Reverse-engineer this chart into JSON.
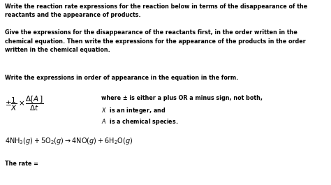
{
  "bg_color": "#ffffff",
  "text_color": "#000000",
  "para1": "Write the reaction rate expressions for the reaction below in terms of the disappearance of the\nreactants and the appearance of products.",
  "para2": "Give the expressions for the disappearance of the reactants first, in the order written in the\nchemical equation. Then write the expressions for the appearance of the products in the order\nwritten in the chemical equation.",
  "para3": "Write the expressions in order of appearance in the equation in the form.",
  "where1": "where ± is either a plus OR a minus sign, not both,",
  "where2": "X  is an integer, and",
  "where3": "A  is a chemical species.",
  "rate_label": "The rate =",
  "fig_width": 4.74,
  "fig_height": 2.65,
  "dpi": 100,
  "formula_fontsize": 7.5,
  "para_fontsize": 5.8,
  "where_fontsize": 5.8,
  "chem_fontsize": 7.0
}
